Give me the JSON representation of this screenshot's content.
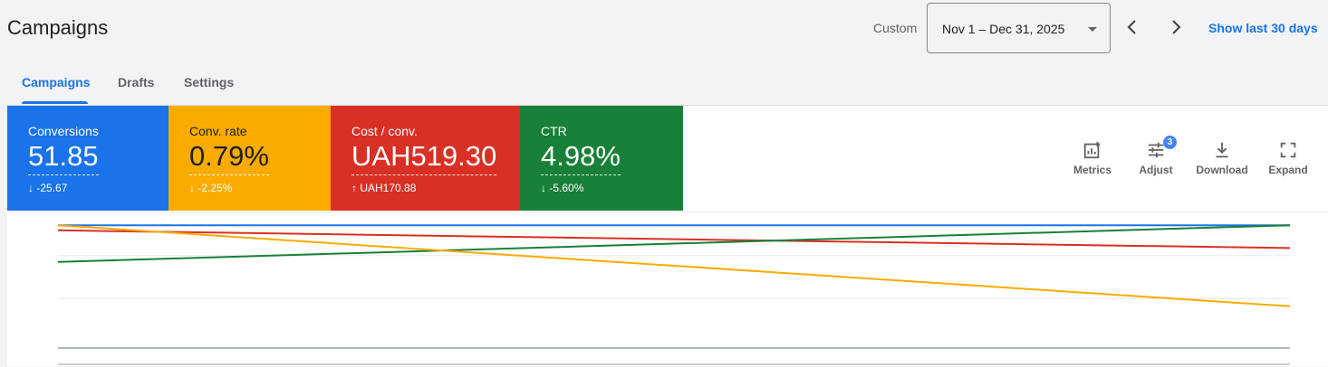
{
  "header": {
    "title": "Campaigns",
    "custom_label": "Custom",
    "date_range": "Nov 1 – Dec 31, 2025",
    "show_last": "Show last 30 days"
  },
  "tabs": [
    {
      "label": "Campaigns"
    },
    {
      "label": "Drafts"
    },
    {
      "label": "Settings"
    }
  ],
  "cards": [
    {
      "label": "Conversions",
      "value": "51.85",
      "delta": "-25.67",
      "color": "#1a73e8"
    },
    {
      "label": "Conv. rate",
      "value": "0.79%",
      "delta": "-2.25%",
      "color": "#f9ab00"
    },
    {
      "label": "Cost / conv.",
      "value": "UAH519.30",
      "delta": "UAH170.88",
      "color": "#d93025"
    },
    {
      "label": "CTR",
      "value": "4.98%",
      "delta": "-5.60%",
      "color": "#188038"
    }
  ],
  "tools": {
    "metrics": "Metrics",
    "adjust": "Adjust",
    "adjust_badge": "3",
    "download": "Download",
    "expand": "Expand"
  },
  "chart_data": {
    "type": "line",
    "x": [
      "start",
      "end"
    ],
    "ylim": [
      0,
      1
    ],
    "grid": true,
    "series": [
      {
        "color": "#1a73e8",
        "values": [
          0.97,
          0.97
        ]
      },
      {
        "color": "#d93025",
        "values": [
          0.93,
          0.79
        ]
      },
      {
        "color": "#188038",
        "values": [
          0.68,
          0.97
        ]
      },
      {
        "color": "#f9ab00",
        "values": [
          0.97,
          0.33
        ]
      }
    ]
  }
}
